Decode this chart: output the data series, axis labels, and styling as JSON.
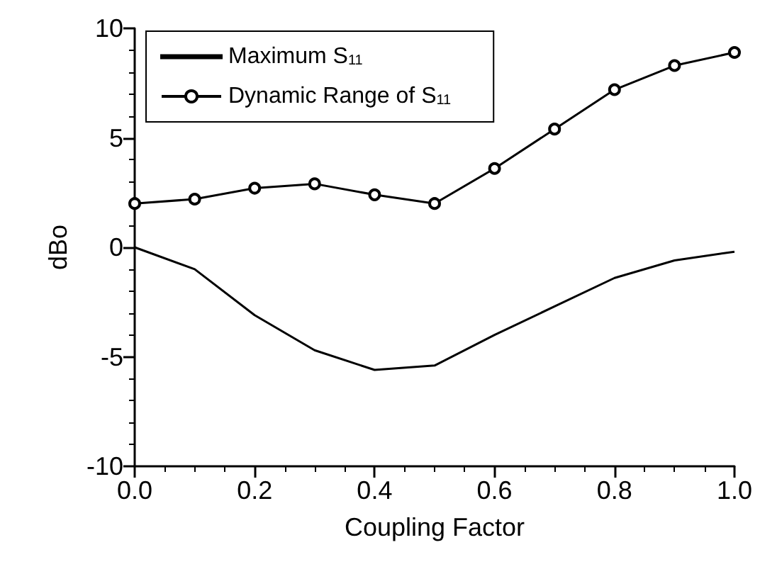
{
  "chart_data": {
    "type": "line",
    "xlabel": "Coupling Factor",
    "ylabel": "dBo",
    "x": [
      0,
      0.1,
      0.2,
      0.3,
      0.4,
      0.5,
      0.6,
      0.7,
      0.8,
      0.9,
      1.0
    ],
    "series": [
      {
        "name": "Maximum S$_{11}$",
        "color": "#000000",
        "marker": "none",
        "values": [
          0,
          -1.0,
          -3.1,
          -4.7,
          -5.6,
          -5.4,
          -4.0,
          -2.7,
          -1.4,
          -0.6,
          -0.2
        ]
      },
      {
        "name": "Dynamic Range of S$_{11}$",
        "color": "#000000",
        "marker": "circle",
        "values": [
          2.0,
          2.2,
          2.7,
          2.9,
          2.4,
          2.0,
          3.6,
          5.4,
          7.2,
          8.3,
          8.9
        ]
      }
    ],
    "xlim": [
      0,
      1
    ],
    "xticks": [
      {
        "value": 0,
        "label": "0.0"
      },
      {
        "value": 0.2,
        "label": "0.2"
      },
      {
        "value": 0.4,
        "label": "0.4"
      },
      {
        "value": 0.6,
        "label": "0.6"
      },
      {
        "value": 0.8,
        "label": "0.8"
      },
      {
        "value": 1,
        "label": "1.0"
      }
    ],
    "ylim": [
      -10,
      10
    ],
    "yticks": [
      -10,
      -5,
      0,
      5,
      10
    ],
    "grid": false,
    "legend": "top left",
    "line_style": "solid"
  }
}
